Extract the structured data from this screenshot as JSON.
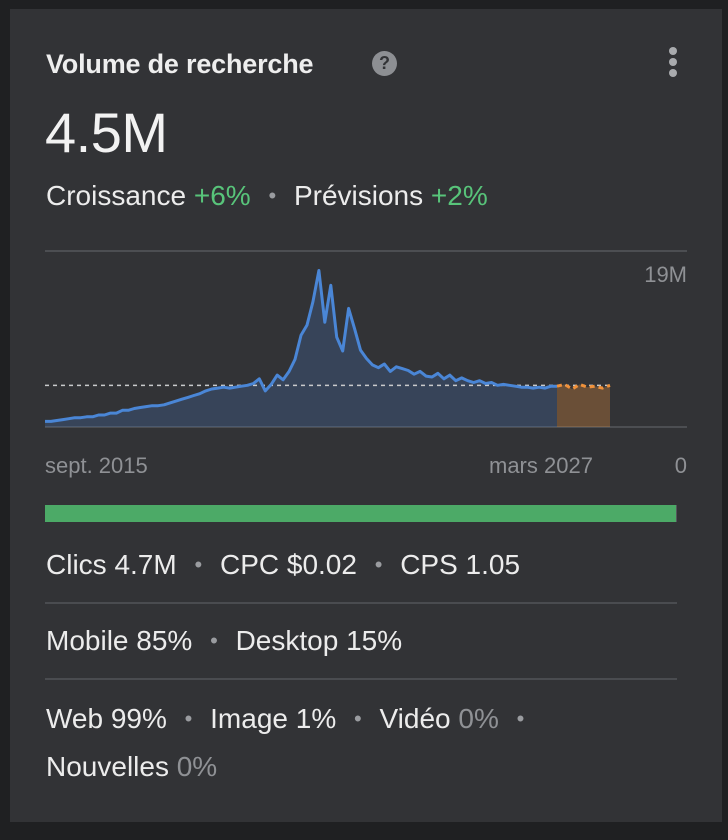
{
  "card": {
    "title": "Volume de recherche",
    "help_icon": "?",
    "value": "4.5M",
    "growth_label": "Croissance",
    "growth_value": "+6%",
    "forecast_label": "Prévisions",
    "forecast_value": "+2%"
  },
  "chart_data": {
    "type": "area",
    "x_start_label": "sept. 2015",
    "x_end_label": "mars 2027",
    "y_max_label": "19M",
    "y_min_label": "0",
    "ylim": [
      0,
      19
    ],
    "unit": "M",
    "baseline_value": 4.5,
    "grid": "top line, dashed baseline",
    "colors": {
      "history": "#4a86d6",
      "forecast": "#f0913a"
    },
    "history": [
      0.6,
      0.6,
      0.7,
      0.8,
      0.9,
      1.0,
      1.0,
      1.1,
      1.1,
      1.3,
      1.3,
      1.5,
      1.5,
      1.8,
      1.8,
      2.0,
      2.1,
      2.2,
      2.3,
      2.3,
      2.4,
      2.6,
      2.8,
      3.0,
      3.2,
      3.4,
      3.6,
      3.9,
      4.1,
      4.2,
      4.3,
      4.2,
      4.3,
      4.4,
      4.5,
      4.7,
      5.2,
      3.9,
      4.6,
      5.6,
      5.1,
      6.0,
      7.3,
      9.9,
      11.0,
      13.5,
      16.9,
      11.3,
      15.3,
      9.7,
      8.2,
      12.8,
      10.6,
      8.3,
      7.4,
      6.7,
      6.4,
      6.8,
      6.0,
      6.5,
      6.3,
      6.1,
      5.7,
      6.0,
      5.5,
      5.4,
      5.8,
      5.2,
      5.6,
      5.0,
      5.3,
      5.0,
      4.8,
      5.0,
      4.7,
      4.8,
      4.5,
      4.6,
      4.5,
      4.4,
      4.3,
      4.3,
      4.2,
      4.3,
      4.2,
      4.4,
      4.4
    ],
    "forecast": [
      4.4,
      4.6,
      4.1,
      4.6,
      4.3,
      4.4,
      4.2,
      4.5
    ]
  },
  "progress": {
    "fraction": 0.9984
  },
  "stats": {
    "clicks": "Clics 4.7M",
    "cpc": "CPC $0.02",
    "cps": "CPS 1.05",
    "mobile": "Mobile 85%",
    "desktop": "Desktop 15%",
    "web": "Web 99%",
    "image": "Image 1%",
    "video_label": "Vidéo",
    "video_value": "0%",
    "news_label": "Nouvelles",
    "news_value": "0%"
  },
  "separator": "•"
}
